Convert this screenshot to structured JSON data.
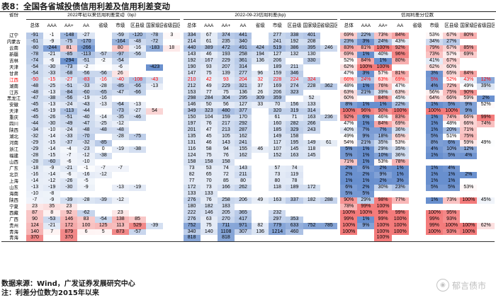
{
  "title": "表8：全国各省城投债信用利差及信用利差变动",
  "header": {
    "province_label": "省份",
    "group_titles": [
      "2022年初以来信用利差变动（bp）",
      "2022-09-23信用利差(bp)",
      "信用利差分位数"
    ],
    "columns": [
      "总体",
      "AAA",
      "AA+",
      "AA",
      "省级",
      "市级",
      "区县级",
      "国家级园区",
      "省级园区"
    ]
  },
  "rows": [
    {
      "prov": "辽宁",
      "c": [
        "-91",
        "-1",
        "-148",
        "-27",
        "",
        "-59",
        "-120",
        "-78",
        "3"
      ],
      "s": [
        "334",
        "67",
        "374",
        "441",
        "",
        "277",
        "338",
        "401",
        ""
      ],
      "q": [
        "69%",
        "22%",
        "73%",
        "84%",
        "",
        "53%",
        "67%",
        "80%",
        ""
      ]
    },
    {
      "prov": "内蒙古",
      "c": [
        "-61",
        "-9",
        "-75",
        "-170",
        "",
        "-164",
        "-48",
        "-72",
        ""
      ],
      "s": [
        "214",
        "61",
        "235",
        "340",
        "",
        "241",
        "192",
        "208",
        ""
      ],
      "q": [
        "23%",
        "3%",
        "24%",
        "43%",
        "",
        "34%",
        "27%",
        "",
        ""
      ]
    },
    {
      "prov": "云南",
      "c": [
        "-80",
        "-244",
        "81",
        "-266",
        "",
        "80",
        "-16",
        "-183",
        "18"
      ],
      "s": [
        "440",
        "389",
        "472",
        "491",
        "424",
        "519",
        "386",
        "395",
        "246"
      ],
      "q": [
        "83%",
        "81%",
        "100%",
        "92%",
        "",
        "79%",
        "67%",
        "85%",
        ""
      ]
    },
    {
      "prov": "新疆",
      "c": [
        "-78",
        "-21",
        "-85",
        "-113",
        "-57",
        "-97",
        "-56",
        ""
      ],
      "s": [
        "143",
        "46",
        "193",
        "258",
        "194",
        "127",
        "132",
        "130",
        ""
      ],
      "q": [
        "69%",
        "1%",
        "40%",
        "96%",
        "",
        "73%",
        "57%",
        "69%",
        ""
      ]
    },
    {
      "prov": "吉林",
      "c": [
        "-74",
        "-6",
        "-294",
        "-51",
        "-2",
        "-54",
        "",
        ""
      ],
      "s": [
        "192",
        "167",
        "229",
        "361",
        "136",
        "206",
        "",
        "330",
        ""
      ],
      "q": [
        "52%",
        "84%",
        "1%",
        "80%",
        "",
        "41%",
        "67%",
        "",
        ""
      ]
    },
    {
      "prov": "天津",
      "c": [
        "-54",
        "-30",
        "-73",
        "-2",
        "",
        "-6",
        "",
        "-423",
        ""
      ],
      "s": [
        "190",
        "93",
        "207",
        "314",
        "",
        "189",
        "211",
        "",
        ""
      ],
      "q": [
        "62%",
        "100%",
        "100%",
        "",
        "",
        "62%",
        "60%",
        "",
        ""
      ]
    },
    {
      "prov": "甘肃",
      "c": [
        "-54",
        "-33",
        "-68",
        "-56",
        "-56",
        "26",
        ""
      ],
      "s": [
        "147",
        "75",
        "139",
        "277",
        "96",
        "159",
        "346",
        ""
      ],
      "q": [
        "47%",
        "3%",
        "57%",
        "81%",
        "",
        "3%",
        "65%",
        "84%",
        ""
      ]
    },
    {
      "prov": "江西",
      "hl": true,
      "c": [
        "-50",
        "-15",
        "-27",
        "-83",
        "-16",
        "-40",
        "-108",
        "-43",
        ""
      ],
      "s": [
        "210",
        "42",
        "93",
        "204",
        "32",
        "228",
        "224",
        "324",
        ""
      ],
      "q": [
        "66%",
        "24%",
        "63%",
        "69%",
        "",
        "5%",
        "52%",
        "43%",
        "12%"
      ]
    },
    {
      "prov": "湖南",
      "c": [
        "-48",
        "-25",
        "-51",
        "-33",
        "-28",
        "-85",
        "-66",
        "-13",
        ""
      ],
      "s": [
        "212",
        "49",
        "229",
        "321",
        "37",
        "169",
        "274",
        "228",
        "362"
      ],
      "q": [
        "48%",
        "1%",
        "76%",
        "47%",
        "",
        "4%",
        "72%",
        "49%",
        "39%"
      ]
    },
    {
      "prov": "江苏",
      "c": [
        "-48",
        "-13",
        "-84",
        "-60",
        "-65",
        "-47",
        "-66",
        ""
      ],
      "s": [
        "153",
        "77",
        "75",
        "136",
        "26",
        "206",
        "323",
        "",
        ""
      ],
      "q": [
        "63%",
        "21%",
        "39%",
        "63%",
        "",
        "56%",
        "75%",
        "90%",
        ""
      ]
    },
    {
      "prov": "黑龙江",
      "c": [
        "-47",
        "-38",
        "-56",
        "-19",
        "-16",
        "",
        ""
      ],
      "s": [
        "298",
        "284",
        "304",
        "295",
        "309",
        "359",
        "",
        "52",
        ""
      ],
      "q": [
        "60%",
        "",
        "84%",
        "45%",
        "",
        "64%",
        "66%",
        "59%",
        "2%"
      ]
    },
    {
      "prov": "安徽",
      "c": [
        "-45",
        "-13",
        "-24",
        "-43",
        "-13",
        "-64",
        "-13",
        ""
      ],
      "s": [
        "146",
        "50",
        "56",
        "127",
        "33",
        "70",
        "156",
        "133",
        ""
      ],
      "q": [
        "8%",
        "1%",
        "1%",
        "22%",
        "",
        "1%",
        "5%",
        "9%",
        "52%"
      ]
    },
    {
      "prov": "天津",
      "c": [
        "-45",
        "-19",
        "-113",
        "-44",
        "",
        "-73",
        "-27",
        "54",
        ""
      ],
      "s": [
        "349",
        "323",
        "480",
        "377",
        "",
        "320",
        "319",
        "314",
        ""
      ],
      "q": [
        "100%",
        "96%",
        "90%",
        "100%",
        "",
        "100%",
        "100%",
        "9%",
        ""
      ]
    },
    {
      "prov": "重庆",
      "c": [
        "-45",
        "-26",
        "-51",
        "-40",
        "-14",
        "-35",
        "-46",
        "",
        ""
      ],
      "s": [
        "150",
        "104",
        "159",
        "170",
        "",
        "61",
        "71",
        "163",
        "236"
      ],
      "q": [
        "92%",
        "6%",
        "46%",
        "83%",
        "",
        "1%",
        "74%",
        "66%",
        "99%"
      ]
    },
    {
      "prov": "四川",
      "c": [
        "-44",
        "-30",
        "-49",
        "-47",
        "-25",
        "-12",
        "",
        ""
      ],
      "s": [
        "197",
        "76",
        "217",
        "292",
        "",
        "160",
        "282",
        "266",
        ""
      ],
      "q": [
        "47%",
        "1%",
        "84%",
        "69%",
        "",
        "1%",
        "48%",
        "66%",
        "74%"
      ]
    },
    {
      "prov": "陕西",
      "c": [
        "-34",
        "-10",
        "-24",
        "-48",
        "-48",
        "-48",
        "",
        ""
      ],
      "s": [
        "201",
        "47",
        "213",
        "287",
        "",
        "185",
        "329",
        "243",
        ""
      ],
      "q": [
        "40%",
        "7%",
        "7%",
        "36%",
        "",
        "1%",
        "20%",
        "71%",
        ""
      ]
    },
    {
      "prov": "湖北",
      "c": [
        "-32",
        "-14",
        "-33",
        "-70",
        "",
        "-28",
        "-75",
        "",
        ""
      ],
      "s": [
        "135",
        "45",
        "105",
        "162",
        "",
        "149",
        "158",
        "",
        ""
      ],
      "q": [
        "49%",
        "9%",
        "18%",
        "65%",
        "",
        "5%",
        "51%",
        "75%",
        ""
      ]
    },
    {
      "prov": "河南",
      "c": [
        "-29",
        "-15",
        "-37",
        "-32",
        "-85",
        "",
        "",
        ""
      ],
      "s": [
        "131",
        "46",
        "143",
        "241",
        "",
        "117",
        "195",
        "149",
        "61"
      ],
      "q": [
        "54%",
        "21%",
        "35%",
        "53%",
        "",
        "8%",
        "6%",
        "59%",
        "49%"
      ]
    },
    {
      "prov": "浙江",
      "c": [
        "-29",
        "-14",
        "-4",
        "-23",
        "0",
        "-19",
        "-38",
        "",
        ""
      ],
      "s": [
        "116",
        "58",
        "94",
        "155",
        "46",
        "107",
        "145",
        "118",
        ""
      ],
      "q": [
        "5%",
        "1%",
        "29%",
        "35%",
        "",
        "4%",
        "10%",
        "12%",
        ""
      ]
    },
    {
      "prov": "福建",
      "c": [
        "-28",
        "-15",
        "-7",
        "-12",
        "-38",
        "",
        "",
        ""
      ],
      "s": [
        "124",
        "75",
        "76",
        "162",
        "",
        "152",
        "163",
        "145",
        ""
      ],
      "q": [
        "5%",
        "1%",
        "10%",
        "36%",
        "",
        "1%",
        "5%",
        "4%",
        ""
      ]
    },
    {
      "prov": "山西",
      "c": [
        "-28",
        "-60",
        "-6",
        "-10",
        "",
        "",
        "",
        ""
      ],
      "s": [
        "158",
        "158",
        "158",
        "",
        "",
        "",
        "",
        "",
        ""
      ],
      "q": [
        "71%",
        "1%",
        "53%",
        "78%",
        "",
        "",
        "",
        "",
        ""
      ]
    },
    {
      "prov": "广东",
      "c": [
        "-18",
        "-9",
        "-21",
        "-1",
        "-7",
        "-7",
        "",
        ""
      ],
      "s": [
        "73",
        "53",
        "74",
        "143",
        "",
        "57",
        "74",
        "",
        ""
      ],
      "q": [
        "2%",
        "6%",
        "2%",
        "1%",
        "",
        "1%",
        "4%",
        "",
        ""
      ]
    },
    {
      "prov": "北京",
      "c": [
        "-16",
        "-14",
        "-6",
        "-16",
        "-12",
        "",
        "",
        ""
      ],
      "s": [
        "82",
        "65",
        "72",
        "211",
        "",
        "73",
        "119",
        "",
        ""
      ],
      "q": [
        "2%",
        "2%",
        "9%",
        "1%",
        "",
        "1%",
        "1%",
        "2%",
        ""
      ]
    },
    {
      "prov": "上海",
      "c": [
        "-14",
        "-12",
        "-26",
        "-5",
        "",
        "",
        "",
        ""
      ],
      "s": [
        "77",
        "70",
        "85",
        "80",
        "",
        "80",
        "78",
        "",
        ""
      ],
      "q": [
        "1%",
        "1%",
        "2%",
        "3%",
        "",
        "1%",
        "1%",
        "",
        ""
      ]
    },
    {
      "prov": "山东",
      "c": [
        "-13",
        "-19",
        "-30",
        "-9",
        "",
        "-13",
        "-19",
        "",
        ""
      ],
      "s": [
        "172",
        "73",
        "166",
        "262",
        "",
        "118",
        "189",
        "172",
        ""
      ],
      "q": [
        "6%",
        "2%",
        "30%",
        "23%",
        "",
        "5%",
        "5%",
        "53%",
        ""
      ]
    },
    {
      "prov": "海南",
      "c": [
        "-10",
        "-8",
        "",
        "",
        "",
        "",
        "",
        ""
      ],
      "s": [
        "133",
        "133",
        "",
        "",
        "",
        "",
        "",
        "",
        ""
      ],
      "q": [
        "5%",
        "5%",
        "",
        "",
        "",
        "",
        "",
        "",
        ""
      ]
    },
    {
      "prov": "陕西",
      "c": [
        "-7",
        "-9",
        "-39",
        "-28",
        "-39",
        "-12",
        "",
        ""
      ],
      "s": [
        "276",
        "76",
        "258",
        "206",
        "49",
        "163",
        "337",
        "182",
        "288"
      ],
      "q": [
        "90%",
        "29%",
        "98%",
        "77%",
        "",
        "1%",
        "73%",
        "100%",
        "45%"
      ]
    },
    {
      "prov": "宁夏",
      "c": [
        "23",
        "35",
        "23",
        "",
        "",
        "",
        "",
        ""
      ],
      "s": [
        "180",
        "182",
        "183",
        "",
        "",
        "",
        "",
        "",
        ""
      ],
      "q": [
        "78%",
        "99%",
        "100%",
        "",
        "",
        "",
        "",
        "",
        ""
      ]
    },
    {
      "prov": "西藏",
      "c": [
        "87",
        "8",
        "92",
        "-62",
        "",
        "23",
        "",
        "",
        ""
      ],
      "s": [
        "222",
        "146",
        "205",
        "365",
        "",
        "232",
        "",
        "",
        ""
      ],
      "q": [
        "100%",
        "100%",
        "99%",
        "99%",
        "",
        "100%",
        "95%",
        "",
        ""
      ]
    },
    {
      "prov": "广西",
      "c": [
        "90",
        "-53",
        "146",
        "83",
        "-54",
        "138",
        "85",
        "",
        ""
      ],
      "s": [
        "276",
        "63",
        "270",
        "417",
        "",
        "297",
        "353",
        "",
        ""
      ],
      "q": [
        "99%",
        "1%",
        "99%",
        "100%",
        "",
        "99%",
        "93%",
        "",
        ""
      ]
    },
    {
      "prov": "贵州",
      "c": [
        "124",
        "-21",
        "172",
        "100",
        "125",
        "113",
        "529",
        "-39",
        ""
      ],
      "s": [
        "752",
        "75",
        "711",
        "971",
        "82",
        "779",
        "633",
        "752",
        "785"
      ],
      "q": [
        "100%",
        "9%",
        "100%",
        "100%",
        "",
        "99%",
        "100%",
        "100%",
        "62%"
      ]
    },
    {
      "prov": "青海",
      "c": [
        "140",
        "7",
        "879",
        "6",
        "5",
        "873",
        "-57",
        ""
      ],
      "s": [
        "340",
        "140",
        "1108",
        "307",
        "136",
        "1214",
        "460",
        ""
      ],
      "q": [
        "100%",
        "",
        "100%",
        "100%",
        "",
        "100%",
        "93%",
        "100%",
        ""
      ]
    },
    {
      "prov": "青海",
      "c": [
        "370",
        "",
        "370",
        "",
        "",
        "",
        "",
        ""
      ],
      "s": [
        "818",
        "",
        "818",
        "",
        "",
        "",
        "",
        "",
        ""
      ],
      "q": [
        "",
        "",
        "100%",
        "",
        "",
        "",
        "",
        "",
        ""
      ]
    }
  ],
  "footer": {
    "line1": "数据来源：Wind，广发证券发展研究中心",
    "line2": "注：利差分位数为2015年以来"
  },
  "watermark": {
    "text": "郁言债市",
    "icon": "wechat-icon"
  },
  "colors": {
    "change_negative": "#5b85c9",
    "change_positive": "#f07b7b",
    "spread_scale": "#4a78c4",
    "quantile_low": "#4a78c4",
    "quantile_mid": "#ffffff",
    "quantile_high": "#f26b6b",
    "highlight_text": "#ff0000"
  }
}
